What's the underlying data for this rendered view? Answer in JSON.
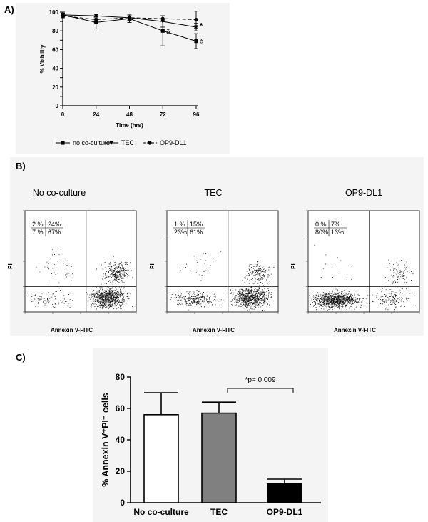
{
  "panels": {
    "a": "A)",
    "b": "B)",
    "c": "C)"
  },
  "chart_data": [
    {
      "type": "line",
      "panel": "A)",
      "xlabel": "Time (hrs)",
      "ylabel": "% Viability",
      "x": [
        0,
        24,
        48,
        72,
        96
      ],
      "xlim": [
        0,
        96
      ],
      "ylim": [
        0,
        100
      ],
      "xticks": [
        0,
        24,
        48,
        72,
        96
      ],
      "yticks": [
        0,
        10,
        20,
        30,
        40,
        50,
        60,
        70,
        80,
        90,
        100
      ],
      "grid": false,
      "legend_position": "bottom",
      "series": [
        {
          "name": "no co-culture",
          "marker": "square",
          "dash": "solid",
          "values": [
            97,
            89,
            93,
            80,
            69
          ],
          "err": [
            3,
            7,
            4,
            16,
            8
          ]
        },
        {
          "name": "TEC",
          "marker": "triangle-down",
          "dash": "solid",
          "values": [
            97,
            96,
            94,
            90,
            84
          ],
          "err": [
            2,
            2,
            3,
            6,
            4
          ]
        },
        {
          "name": "OP9-DL1",
          "marker": "circle",
          "dash": "dashed",
          "values": [
            96,
            92,
            94,
            93,
            92
          ],
          "err": [
            2,
            3,
            3,
            3,
            9
          ]
        }
      ],
      "annotations": [
        {
          "text": "δ",
          "x": 72,
          "y": 79
        },
        {
          "text": "δ",
          "x": 96,
          "y": 69
        },
        {
          "text": "*",
          "x": 96,
          "y": 85
        }
      ]
    },
    {
      "type": "scatter",
      "panel": "B)",
      "subplots": [
        {
          "title": "No co-culture",
          "xlabel": "Annexin V-FITC",
          "ylabel": "PI",
          "quadrants": {
            "ul": "2 %",
            "ur": "24%",
            "ll": "7 %",
            "lr": "67%"
          }
        },
        {
          "title": "TEC",
          "xlabel": "Annexin V-FITC",
          "ylabel": "PI",
          "quadrants": {
            "ul": "1 %",
            "ur": "15%",
            "ll": "23%",
            "lr": "61%"
          }
        },
        {
          "title": "OP9-DL1",
          "xlabel": "Annexin V-FITC",
          "ylabel": "PI",
          "quadrants": {
            "ul": "0 %",
            "ur": "7%",
            "ll": "80%",
            "lr": "13%"
          }
        }
      ]
    },
    {
      "type": "bar",
      "panel": "C)",
      "categories": [
        "No co-culture",
        "TEC",
        "OP9-DL1"
      ],
      "values": [
        56,
        57,
        12
      ],
      "err": [
        14,
        7,
        3
      ],
      "colors": [
        "#ffffff",
        "#808080",
        "#000000"
      ],
      "ylabel": "% Annexin V⁺PI⁻ cells",
      "ylim": [
        0,
        80
      ],
      "yticks": [
        0,
        20,
        40,
        60,
        80
      ],
      "annotation": "*p= 0.009",
      "bracket": [
        "TEC",
        "OP9-DL1"
      ]
    }
  ]
}
